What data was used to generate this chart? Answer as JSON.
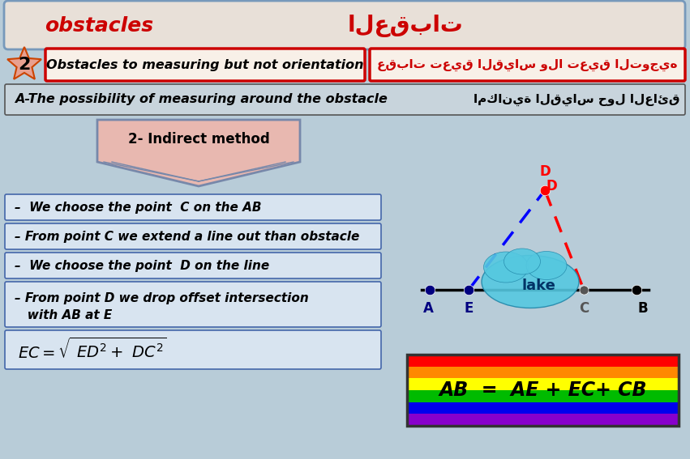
{
  "bg_color": "#b8ccd8",
  "title_left": "obstacles",
  "title_right": "العقبات",
  "title_bg": "#e8e0d8",
  "title_border": "#6688aa",
  "section2_num": "2",
  "section2_left": "Obstacles to measuring but not orientation",
  "section2_right": "عقبات تعيق القياس ولا تعيق التوجيه",
  "section_a_left": "A-The possibility of measuring around the obstacle",
  "section_a_right": "امكانية القياس حول العائق",
  "indirect_method": "2- Indirect method",
  "bullet1": "–  We choose the point  C on the AB",
  "bullet2": "– From point C we extend a line out than obstacle",
  "bullet3": "–  We choose the point  D on the line",
  "bullet4a": "– From point D we drop offset intersection",
  "bullet4b": "   with AB at E",
  "equation": "AB  =  AE + EC+ CB",
  "lake_color": "#55c8e0",
  "lake_text": "lake",
  "pt_labels": [
    "A",
    "E",
    "C",
    "B",
    "D"
  ]
}
